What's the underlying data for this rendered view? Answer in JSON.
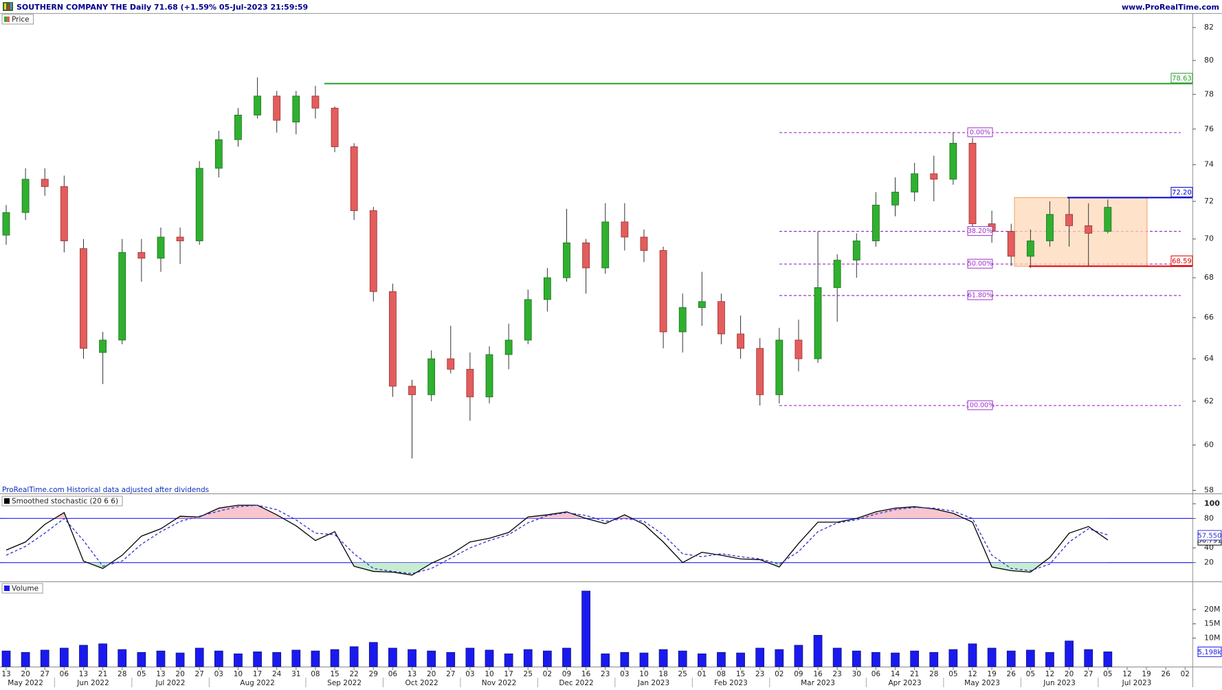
{
  "chart_data": [
    {
      "type": "candlestick",
      "title": "SOUTHERN COMPANY THE Daily 71.68 (+1.59% 05-Jul-2023 21:59:59",
      "source": "www.ProRealTime.com",
      "legend_label": "Price",
      "note": "ProRealTime.com  Historical data adjusted after dividends",
      "categories": [
        "13",
        "20",
        "27",
        "06",
        "13",
        "21",
        "28",
        "05",
        "13",
        "20",
        "27",
        "03",
        "10",
        "17",
        "24",
        "31",
        "08",
        "15",
        "22",
        "29",
        "06",
        "13",
        "20",
        "27",
        "03",
        "10",
        "17",
        "25",
        "02",
        "09",
        "16",
        "23",
        "03",
        "10",
        "18",
        "25",
        "01",
        "08",
        "15",
        "23",
        "02",
        "09",
        "16",
        "23",
        "30",
        "06",
        "14",
        "21",
        "28",
        "05",
        "12",
        "19",
        "26",
        "05",
        "12",
        "20",
        "27",
        "05",
        "12",
        "19",
        "26",
        "02"
      ],
      "months": [
        "May 2022",
        "Jun 2022",
        "Jul 2022",
        "Aug 2022",
        "Sep 2022",
        "Oct 2022",
        "Nov 2022",
        "Dec 2022",
        "Jan 2023",
        "Feb 2023",
        "Mar 2023",
        "Apr 2023",
        "May 2023",
        "Jun 2023",
        "Jul 2023"
      ],
      "open": [
        70.2,
        71.4,
        73.2,
        72.8,
        69.5,
        64.3,
        64.9,
        69.3,
        69,
        70.1,
        69.9,
        73.8,
        75.4,
        76.8,
        77.9,
        76.4,
        77.9,
        77.2,
        75,
        71.5,
        67.3,
        62.7,
        62.3,
        64,
        63.5,
        62.2,
        64.2,
        64.9,
        66.9,
        68,
        69.8,
        68.5,
        70.9,
        70.1,
        69.4,
        65.3,
        66.5,
        66.8,
        65.2,
        64.5,
        62.3,
        64.9,
        64,
        67.5,
        68.9,
        69.9,
        71.8,
        72.5,
        73.5,
        73.2,
        75.2,
        70.8,
        70.4,
        69.1,
        69.9,
        71.3,
        70.7,
        70.4,
        null,
        null,
        null,
        null
      ],
      "high": [
        71.8,
        73.8,
        73.8,
        73.4,
        70,
        65.3,
        70,
        70,
        70.6,
        70.6,
        74.2,
        75.9,
        77.2,
        79,
        78.2,
        78.2,
        78.5,
        77.3,
        75.2,
        71.7,
        67.7,
        63,
        64.4,
        65.6,
        64.3,
        64.6,
        65.7,
        67.4,
        68.5,
        71.6,
        70,
        71.9,
        71.9,
        70.5,
        69.6,
        67.2,
        68.3,
        67.2,
        66.1,
        65,
        65.5,
        65.9,
        70.4,
        69.2,
        70.3,
        72.5,
        73.3,
        74.1,
        74.5,
        75.8,
        75.5,
        71.5,
        70.8,
        70.5,
        72,
        72.2,
        71.9,
        72.1,
        null,
        null,
        null,
        null
      ],
      "low": [
        69.7,
        71,
        72.3,
        69.3,
        64,
        62.8,
        64.7,
        67.8,
        68.3,
        68.7,
        69.7,
        73.3,
        75,
        76.6,
        75.8,
        75.7,
        76.6,
        74.7,
        71,
        66.8,
        62.2,
        59.4,
        62,
        63.3,
        61.1,
        61.9,
        63.5,
        64.7,
        66.3,
        67.8,
        67.2,
        68.2,
        69.4,
        68.8,
        64.5,
        64.3,
        65.6,
        64.7,
        64,
        61.8,
        61.9,
        63.4,
        63.8,
        65.8,
        68,
        69.6,
        71.2,
        72,
        72,
        72.9,
        70.5,
        69.8,
        68.6,
        68.5,
        69.6,
        69.6,
        68.6,
        70.3,
        null,
        null,
        null,
        null
      ],
      "close": [
        71.4,
        73.2,
        72.8,
        69.9,
        64.5,
        64.9,
        69.3,
        69,
        70.1,
        69.9,
        73.8,
        75.4,
        76.8,
        77.9,
        76.5,
        77.9,
        77.2,
        75,
        71.5,
        67.3,
        62.7,
        62.3,
        64,
        63.5,
        62.2,
        64.2,
        64.9,
        66.9,
        68,
        69.8,
        68.5,
        70.9,
        70.1,
        69.4,
        65.3,
        66.5,
        66.8,
        65.2,
        64.5,
        62.3,
        64.9,
        64,
        67.5,
        68.9,
        69.9,
        71.8,
        72.5,
        73.5,
        73.2,
        75.2,
        70.8,
        70.4,
        69.1,
        69.9,
        71.3,
        70.7,
        70.3,
        71.68,
        null,
        null,
        null,
        null
      ],
      "up_color": "#2fb02f",
      "down_color": "#e35d5d",
      "log_scale": true,
      "ylim": [
        58,
        82
      ],
      "yticks": [
        58,
        60,
        62,
        64,
        66,
        68,
        70,
        72,
        74,
        76,
        78,
        80,
        82
      ],
      "levels": [
        {
          "value": 78.63,
          "label": "78.63",
          "color": "#2a9d2a"
        },
        {
          "value": 72.2,
          "label": "72.20",
          "color": "#0000cc"
        },
        {
          "value": 68.59,
          "label": "68.59",
          "color": "#dd0000"
        }
      ],
      "fibonacci": {
        "color": "#9b30c8",
        "levels": [
          {
            "value": 75.8,
            "label": "0.00%"
          },
          {
            "value": 70.4,
            "label": "38.20%"
          },
          {
            "value": 68.7,
            "label": "50.00%"
          },
          {
            "value": 67.1,
            "label": "61.80%"
          },
          {
            "value": 61.8,
            "label": "100.00%"
          }
        ]
      },
      "range_box": {
        "fill": "#ffd8b8",
        "stroke": "#f0a060"
      }
    },
    {
      "type": "line",
      "title": "Smoothed stochastic (20 6 6)",
      "series": [
        {
          "color": "#000000",
          "style": "solid",
          "last_label": "50.791",
          "values": [
            37,
            48,
            72,
            88,
            22,
            12,
            30,
            56,
            66,
            83,
            82,
            94,
            98,
            98,
            85,
            70,
            50,
            62,
            15,
            8,
            7,
            3,
            19,
            31,
            48,
            53,
            61,
            82,
            85,
            89,
            80,
            73,
            85,
            72,
            48,
            20,
            34,
            30,
            25,
            24,
            14,
            46,
            75,
            75,
            80,
            89,
            94,
            96,
            93,
            87,
            75,
            14,
            9,
            7,
            27,
            60,
            69,
            50.791,
            null,
            null,
            null,
            null
          ]
        },
        {
          "color": "#3030d0",
          "style": "dashed",
          "last_label": "57.550",
          "values": [
            30,
            42,
            60,
            80,
            50,
            15,
            22,
            45,
            62,
            76,
            83,
            90,
            96,
            98,
            92,
            78,
            60,
            58,
            32,
            12,
            8,
            5,
            12,
            26,
            40,
            50,
            58,
            74,
            84,
            88,
            84,
            76,
            80,
            76,
            58,
            32,
            28,
            32,
            28,
            25,
            18,
            35,
            62,
            74,
            78,
            86,
            92,
            95,
            94,
            90,
            80,
            30,
            12,
            9,
            18,
            48,
            66,
            57.55,
            null,
            null,
            null,
            null
          ]
        }
      ],
      "ylim": [
        0,
        100
      ],
      "yticks": [
        20,
        40,
        80,
        100
      ],
      "bands": [
        80,
        20
      ],
      "band_color": "#2a2aff",
      "overbought_color": "#f7c6cf",
      "oversold_color": "#c8ecd0"
    },
    {
      "type": "bar",
      "title": "Volume",
      "color": "#1a1aee",
      "last_label": "5,198k",
      "values": [
        5.5,
        5.0,
        5.8,
        6.5,
        7.5,
        8.0,
        6.0,
        5.0,
        5.5,
        4.8,
        6.5,
        5.5,
        4.5,
        5.2,
        5.0,
        5.8,
        5.5,
        6.0,
        7.0,
        8.5,
        6.5,
        6.0,
        5.5,
        5.0,
        6.5,
        5.8,
        4.5,
        6.0,
        5.5,
        6.5,
        26.5,
        4.5,
        5.0,
        4.8,
        6.0,
        5.5,
        4.5,
        5.0,
        4.8,
        6.5,
        6.0,
        7.5,
        11.0,
        6.5,
        5.5,
        5.0,
        4.8,
        5.5,
        5.0,
        6.0,
        8.0,
        6.5,
        5.5,
        5.8,
        5.0,
        9.0,
        6.0,
        5.198,
        null,
        null,
        null,
        null
      ],
      "ylim": [
        0,
        29
      ],
      "yticks": [
        {
          "value": 10,
          "label": "10M"
        },
        {
          "value": 15,
          "label": "15M"
        },
        {
          "value": 20,
          "label": "20M"
        }
      ]
    }
  ]
}
